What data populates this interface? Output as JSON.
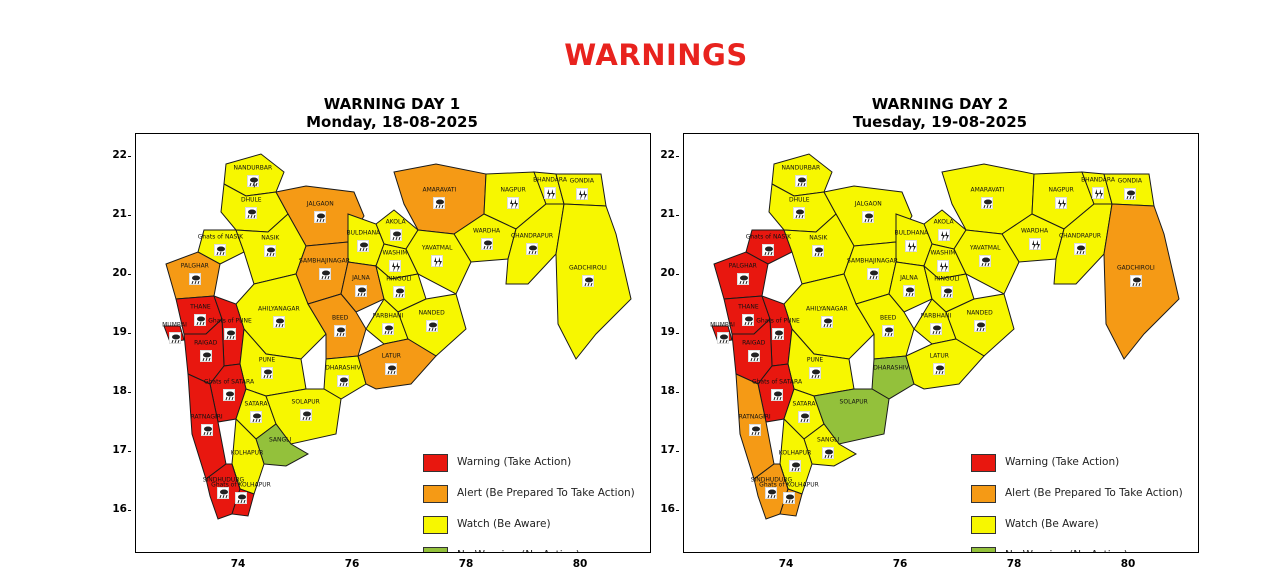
{
  "page_title": "WARNINGS",
  "colors": {
    "warning": "#e8170f",
    "alert": "#f59a15",
    "watch": "#f7f700",
    "no_warning": "#93c13b",
    "title": "#e8231e"
  },
  "legend": [
    {
      "key": "warning",
      "label": "Warning (Take Action)"
    },
    {
      "key": "alert",
      "label": "Alert (Be Prepared To Take Action)"
    },
    {
      "key": "watch",
      "label": "Watch (Be Aware)"
    },
    {
      "key": "no_warning",
      "label": "No Warning (No Action)"
    }
  ],
  "axes": {
    "x_ticks": [
      "74",
      "76",
      "78",
      "80"
    ],
    "y_ticks": [
      "22",
      "21",
      "20",
      "19",
      "18",
      "17",
      "16"
    ]
  },
  "panels": [
    {
      "title_line1": "WARNING DAY 1",
      "title_line2": "Monday, 18-08-2025",
      "districts": [
        {
          "name": "NANDURBAR",
          "level": "watch",
          "icon": "thunderstorm-rain"
        },
        {
          "name": "DHULE",
          "level": "watch",
          "icon": "heavy-rain"
        },
        {
          "name": "JALGAON",
          "level": "alert",
          "icon": "heavy-rain"
        },
        {
          "name": "AMARAVATI",
          "level": "alert",
          "icon": "heavy-rain"
        },
        {
          "name": "NAGPUR",
          "level": "watch",
          "icon": "thunderstorm"
        },
        {
          "name": "BHANDARA",
          "level": "watch",
          "icon": "thunderstorm"
        },
        {
          "name": "GONDIA",
          "level": "watch",
          "icon": "thunderstorm"
        },
        {
          "name": "AKOLA",
          "level": "watch",
          "icon": "heavy-rain"
        },
        {
          "name": "WARDHA",
          "level": "watch",
          "icon": "heavy-rain"
        },
        {
          "name": "BULDHANA",
          "level": "watch",
          "icon": "heavy-rain"
        },
        {
          "name": "Ghats of NASIK",
          "level": "watch",
          "icon": "heavy-rain"
        },
        {
          "name": "NASIK",
          "level": "watch",
          "icon": "heavy-rain"
        },
        {
          "name": "CHHATRAPATI SAMBHAJINAGAR",
          "level": "alert",
          "icon": "heavy-rain"
        },
        {
          "name": "WASHIM",
          "level": "watch",
          "icon": "thunderstorm"
        },
        {
          "name": "YAVATMAL",
          "level": "watch",
          "icon": "thunderstorm"
        },
        {
          "name": "CHANDRAPUR",
          "level": "watch",
          "icon": "heavy-rain"
        },
        {
          "name": "PALGHAR",
          "level": "alert",
          "icon": "heavy-rain"
        },
        {
          "name": "JALNA",
          "level": "alert",
          "icon": "heavy-rain"
        },
        {
          "name": "HINGOLI",
          "level": "watch",
          "icon": "heavy-rain"
        },
        {
          "name": "GADCHIROLI",
          "level": "watch",
          "icon": "heavy-rain"
        },
        {
          "name": "THANE",
          "level": "warning",
          "icon": "heavy-rain"
        },
        {
          "name": "AHILYANAGAR",
          "level": "watch",
          "icon": "heavy-rain"
        },
        {
          "name": "MUMBAI",
          "level": "warning",
          "icon": "heavy-rain"
        },
        {
          "name": "Ghats of PUNE",
          "level": "warning",
          "icon": "heavy-rain"
        },
        {
          "name": "PARBHANI",
          "level": "watch",
          "icon": "heavy-rain"
        },
        {
          "name": "NANDED",
          "level": "watch",
          "icon": "heavy-rain"
        },
        {
          "name": "BEED",
          "level": "alert",
          "icon": "heavy-rain"
        },
        {
          "name": "PUNE",
          "level": "watch",
          "icon": "heavy-rain"
        },
        {
          "name": "RAIGAD",
          "level": "warning",
          "icon": "heavy-rain"
        },
        {
          "name": "DHARASHIV",
          "level": "watch",
          "icon": "heavy-rain"
        },
        {
          "name": "LATUR",
          "level": "alert",
          "icon": "heavy-rain"
        },
        {
          "name": "Ghats of SATARA",
          "level": "warning",
          "icon": "heavy-rain"
        },
        {
          "name": "SATARA",
          "level": "watch",
          "icon": "heavy-rain"
        },
        {
          "name": "SOLAPUR",
          "level": "watch",
          "icon": "heavy-rain"
        },
        {
          "name": "RATNAGIRI",
          "level": "warning",
          "icon": "heavy-rain"
        },
        {
          "name": "SANGLI",
          "level": "no_warning",
          "icon": "none"
        },
        {
          "name": "KOLHAPUR",
          "level": "watch",
          "icon": "none"
        },
        {
          "name": "SINDHUDURG",
          "level": "warning",
          "icon": "heavy-rain"
        },
        {
          "name": "Ghats of KOLHAPUR",
          "level": "warning",
          "icon": "heavy-rain"
        }
      ]
    },
    {
      "title_line1": "WARNING DAY 2",
      "title_line2": "Tuesday, 19-08-2025",
      "districts": [
        {
          "name": "NANDURBAR",
          "level": "watch",
          "icon": "heavy-rain"
        },
        {
          "name": "DHULE",
          "level": "watch",
          "icon": "heavy-rain"
        },
        {
          "name": "JALGAON",
          "level": "watch",
          "icon": "heavy-rain"
        },
        {
          "name": "AMARAVATI",
          "level": "watch",
          "icon": "heavy-rain"
        },
        {
          "name": "NAGPUR",
          "level": "watch",
          "icon": "thunderstorm"
        },
        {
          "name": "BHANDARA",
          "level": "watch",
          "icon": "thunderstorm"
        },
        {
          "name": "GONDIA",
          "level": "watch",
          "icon": "heavy-rain"
        },
        {
          "name": "AKOLA",
          "level": "watch",
          "icon": "thunderstorm"
        },
        {
          "name": "WARDHA",
          "level": "watch",
          "icon": "thunderstorm"
        },
        {
          "name": "BULDHANA",
          "level": "watch",
          "icon": "thunderstorm"
        },
        {
          "name": "Ghats of NASIK",
          "level": "warning",
          "icon": "heavy-rain"
        },
        {
          "name": "NASIK",
          "level": "watch",
          "icon": "heavy-rain"
        },
        {
          "name": "CHHATRAPATI SAMBHAJINAGAR",
          "level": "watch",
          "icon": "heavy-rain"
        },
        {
          "name": "WASHIM",
          "level": "watch",
          "icon": "thunderstorm"
        },
        {
          "name": "YAVATMAL",
          "level": "watch",
          "icon": "heavy-rain"
        },
        {
          "name": "CHANDRAPUR",
          "level": "watch",
          "icon": "heavy-rain"
        },
        {
          "name": "PALGHAR",
          "level": "warning",
          "icon": "heavy-rain"
        },
        {
          "name": "JALNA",
          "level": "watch",
          "icon": "heavy-rain"
        },
        {
          "name": "HINGOLI",
          "level": "watch",
          "icon": "heavy-rain"
        },
        {
          "name": "GADCHIROLI",
          "level": "alert",
          "icon": "heavy-rain"
        },
        {
          "name": "THANE",
          "level": "warning",
          "icon": "heavy-rain"
        },
        {
          "name": "AHILYANAGAR",
          "level": "watch",
          "icon": "heavy-rain"
        },
        {
          "name": "MUMBAI",
          "level": "warning",
          "icon": "heavy-rain"
        },
        {
          "name": "Ghats of PUNE",
          "level": "warning",
          "icon": "heavy-rain"
        },
        {
          "name": "PARBHANI",
          "level": "watch",
          "icon": "heavy-rain"
        },
        {
          "name": "NANDED",
          "level": "watch",
          "icon": "heavy-rain"
        },
        {
          "name": "BEED",
          "level": "watch",
          "icon": "heavy-rain"
        },
        {
          "name": "PUNE",
          "level": "watch",
          "icon": "heavy-rain"
        },
        {
          "name": "RAIGAD",
          "level": "warning",
          "icon": "heavy-rain"
        },
        {
          "name": "DHARASHIV",
          "level": "no_warning",
          "icon": "none"
        },
        {
          "name": "LATUR",
          "level": "watch",
          "icon": "heavy-rain"
        },
        {
          "name": "Ghats of SATARA",
          "level": "warning",
          "icon": "heavy-rain"
        },
        {
          "name": "SATARA",
          "level": "watch",
          "icon": "heavy-rain"
        },
        {
          "name": "SOLAPUR",
          "level": "no_warning",
          "icon": "none"
        },
        {
          "name": "RATNAGIRI",
          "level": "alert",
          "icon": "heavy-rain"
        },
        {
          "name": "SANGLI",
          "level": "watch",
          "icon": "heavy-rain"
        },
        {
          "name": "KOLHAPUR",
          "level": "watch",
          "icon": "heavy-rain"
        },
        {
          "name": "SINDHUDURG",
          "level": "alert",
          "icon": "heavy-rain"
        },
        {
          "name": "Ghats of KOLHAPUR",
          "level": "alert",
          "icon": "heavy-rain"
        }
      ]
    }
  ]
}
